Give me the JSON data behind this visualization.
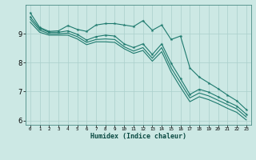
{
  "xlabel": "Humidex (Indice chaleur)",
  "background_color": "#cce8e4",
  "grid_color": "#aacfcb",
  "line_color": "#1e7a6e",
  "xlim": [
    -0.5,
    23.5
  ],
  "ylim": [
    5.85,
    10.0
  ],
  "yticks": [
    6,
    7,
    8,
    9
  ],
  "line1_x": [
    0,
    1,
    2,
    3,
    4,
    5,
    6,
    7,
    8,
    9,
    10,
    11,
    12,
    13,
    14,
    15,
    16,
    17,
    18,
    19,
    20,
    21,
    22,
    23
  ],
  "line1_y": [
    9.72,
    9.22,
    9.08,
    9.1,
    9.28,
    9.15,
    9.08,
    9.3,
    9.35,
    9.35,
    9.3,
    9.25,
    9.45,
    9.12,
    9.3,
    8.8,
    8.92,
    7.82,
    7.5,
    7.3,
    7.1,
    6.88,
    6.68,
    6.38
  ],
  "line2_x": [
    0,
    1,
    2,
    3,
    4,
    5,
    6,
    7,
    8,
    9,
    10,
    11,
    12,
    13,
    14,
    15,
    16,
    17,
    18,
    19,
    20,
    21,
    22,
    23
  ],
  "line2_y": [
    9.58,
    9.18,
    9.05,
    9.05,
    9.1,
    8.98,
    8.78,
    8.9,
    8.95,
    8.92,
    8.65,
    8.52,
    8.65,
    8.28,
    8.65,
    7.98,
    7.45,
    6.9,
    7.08,
    6.98,
    6.82,
    6.65,
    6.5,
    6.22
  ],
  "line3_x": [
    0,
    1,
    2,
    3,
    4,
    5,
    6,
    7,
    8,
    9,
    10,
    11,
    12,
    13,
    14,
    15,
    16,
    17,
    18,
    19,
    20,
    21,
    22,
    23
  ],
  "line3_y": [
    9.5,
    9.12,
    9.0,
    9.0,
    9.02,
    8.9,
    8.7,
    8.8,
    8.82,
    8.8,
    8.55,
    8.4,
    8.52,
    8.15,
    8.52,
    7.82,
    7.3,
    6.78,
    6.95,
    6.85,
    6.7,
    6.55,
    6.4,
    6.12
  ],
  "line4_x": [
    0,
    1,
    2,
    3,
    4,
    5,
    6,
    7,
    8,
    9,
    10,
    11,
    12,
    13,
    14,
    15,
    16,
    17,
    18,
    19,
    20,
    21,
    22,
    23
  ],
  "line4_y": [
    9.4,
    9.05,
    8.95,
    8.95,
    8.95,
    8.82,
    8.62,
    8.72,
    8.72,
    8.7,
    8.48,
    8.32,
    8.42,
    8.05,
    8.38,
    7.68,
    7.15,
    6.65,
    6.82,
    6.72,
    6.58,
    6.42,
    6.28,
    6.02
  ]
}
